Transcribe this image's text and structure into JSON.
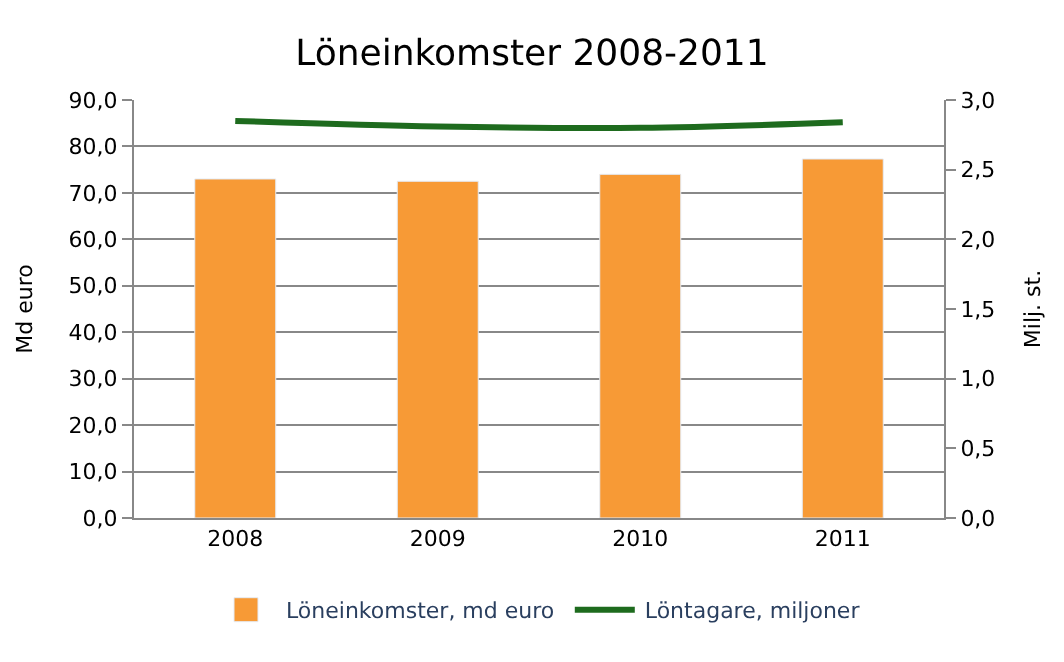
{
  "chart_data": {
    "type": "bar",
    "title": "Löneinkomster 2008-2011",
    "ylabel": "Md euro",
    "y2label": "Milj. st.",
    "categories": [
      "2008",
      "2009",
      "2010",
      "2011"
    ],
    "series": [
      {
        "name": "Löneinkomster, md euro",
        "color": "#f79a36",
        "values": [
          73.0,
          72.5,
          74.0,
          77.3
        ]
      },
      {
        "name": "Löntagare, miljoner",
        "color": "#1e6b1e",
        "type": "line",
        "axis": "y2",
        "marker": "none",
        "values": [
          2.85,
          2.81,
          2.8,
          2.84
        ]
      }
    ],
    "ylim": [
      0,
      90
    ],
    "yticks": [
      {
        "value": 0,
        "label": "0,0"
      },
      {
        "value": 10,
        "label": "10,0"
      },
      {
        "value": 20,
        "label": "20,0"
      },
      {
        "value": 30,
        "label": "30,0"
      },
      {
        "value": 40,
        "label": "40,0"
      },
      {
        "value": 50,
        "label": "50,0"
      },
      {
        "value": 60,
        "label": "60,0"
      },
      {
        "value": 70,
        "label": "70,0"
      },
      {
        "value": 80,
        "label": "80,0"
      },
      {
        "value": 90,
        "label": "90,0"
      }
    ],
    "y2lim": [
      0,
      3
    ],
    "y2ticks": [
      {
        "value": 0,
        "label": "0,0"
      },
      {
        "value": 0.5,
        "label": "0,5"
      },
      {
        "value": 1,
        "label": "1,0"
      },
      {
        "value": 1.5,
        "label": "1,5"
      },
      {
        "value": 2,
        "label": "2,0"
      },
      {
        "value": 2.5,
        "label": "2,5"
      },
      {
        "value": 3,
        "label": "3,0"
      }
    ],
    "grid": "y",
    "legend": "bottom"
  }
}
